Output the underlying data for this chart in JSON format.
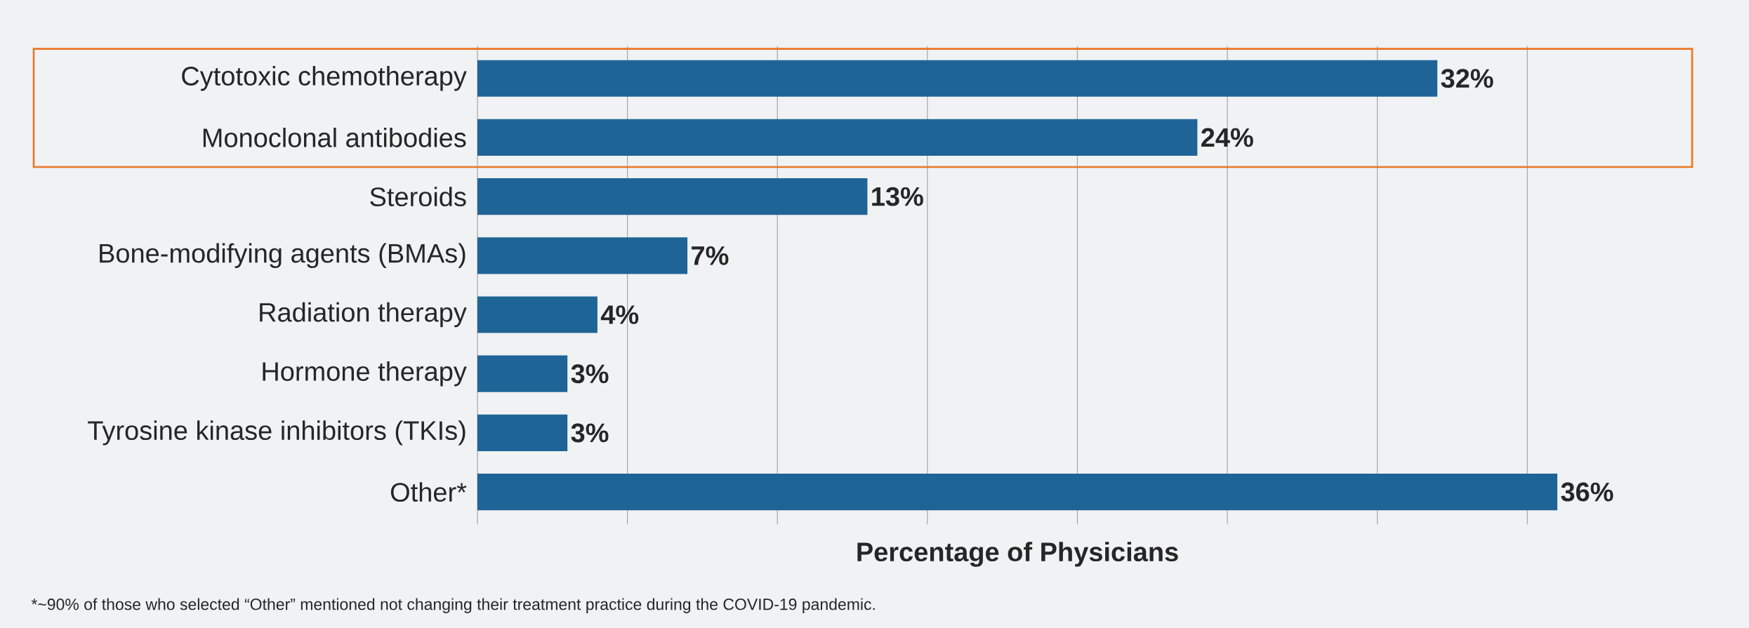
{
  "chart_data": {
    "type": "bar",
    "orientation": "horizontal",
    "xlabel": "Percentage of Physicians",
    "categories": [
      "Cytotoxic chemotherapy",
      "Monoclonal antibodies",
      "Steroids",
      "Bone-modifying agents (BMAs)",
      "Radiation therapy",
      "Hormone therapy",
      "Tyrosine kinase inhibitors (TKIs)",
      "Other*"
    ],
    "values": [
      32,
      24,
      13,
      7,
      4,
      3,
      3,
      36
    ],
    "value_labels": [
      "32%",
      "24%",
      "13%",
      "7%",
      "4%",
      "3%",
      "3%",
      "36%"
    ],
    "color": "#1f6496",
    "xlim": [
      0,
      36
    ],
    "xticks": [
      {
        "value": 0,
        "label": null
      },
      {
        "value": 5,
        "label": null
      },
      {
        "value": 10,
        "label": null
      },
      {
        "value": 15,
        "label": null
      },
      {
        "value": 20,
        "label": null
      },
      {
        "value": 25,
        "label": null
      },
      {
        "value": 30,
        "label": null
      },
      {
        "value": 35,
        "label": null
      }
    ],
    "grid": "x",
    "tick_labels": "y",
    "annotations": [
      "*~90% of those who selected “Other” mentioned not changing their treatment practice during the COVID-19 pandemic."
    ]
  }
}
